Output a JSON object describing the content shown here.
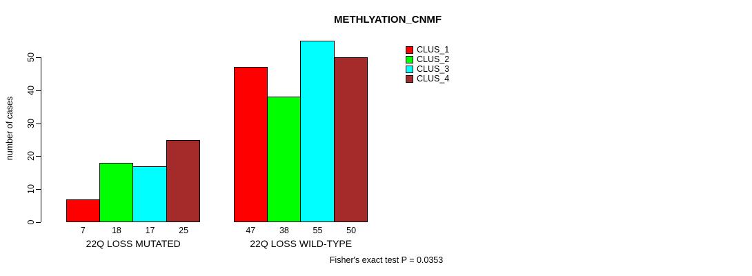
{
  "chart_data": {
    "type": "bar",
    "title": "METHLYATION_CNMF",
    "ylabel": "number of cases",
    "xlabel": "",
    "categories": [
      "22Q LOSS MUTATED",
      "22Q LOSS WILD-TYPE"
    ],
    "series": [
      {
        "name": "CLUS_1",
        "color": "#FF0000",
        "values": [
          7,
          47
        ]
      },
      {
        "name": "CLUS_2",
        "color": "#00FF00",
        "values": [
          18,
          38
        ]
      },
      {
        "name": "CLUS_3",
        "color": "#00FFFF",
        "values": [
          17,
          55
        ]
      },
      {
        "name": "CLUS_4",
        "color": "#A52A2A",
        "values": [
          25,
          50
        ]
      }
    ],
    "bar_value_labels": [
      [
        7,
        18,
        17,
        25
      ],
      [
        47,
        38,
        55,
        50
      ]
    ],
    "yticks": [
      0,
      10,
      20,
      30,
      40,
      50
    ],
    "ylim": [
      0,
      55
    ],
    "grid": false,
    "legend_position": "top-right",
    "bar_border_color": "#000000",
    "annotation": "Fisher's exact test P = 0.0353"
  }
}
